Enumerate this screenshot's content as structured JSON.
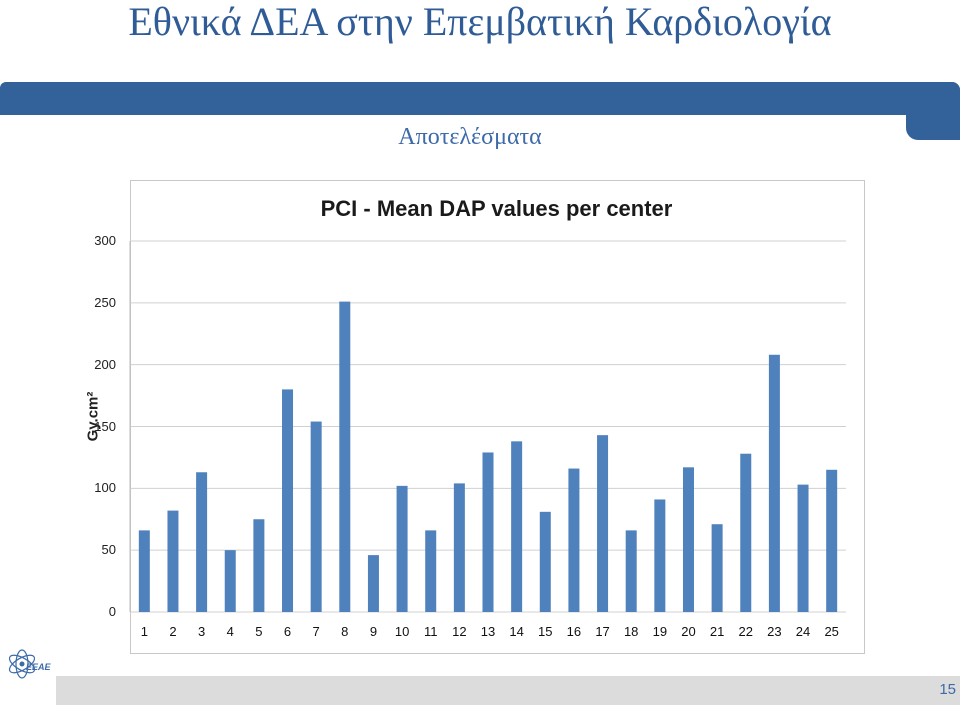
{
  "slide": {
    "title": "Εθνικά ΔΕΑ στην Επεμβατική Καρδιολογία",
    "subtitle": "Αποτελέσματα",
    "page_number": "15",
    "logo_text": "ΕΕΑΕ"
  },
  "colors": {
    "bar": "#4f81bd",
    "band": "#33619a",
    "title": "#2f5c96"
  },
  "chart_data": {
    "type": "bar",
    "title": "PCI - Mean DAP values per center",
    "xlabel": "",
    "ylabel": "Gy.cm²",
    "ylim": [
      0,
      300
    ],
    "yticks": [
      "0",
      "50",
      "100",
      "150",
      "200",
      "250",
      "300"
    ],
    "grid": true,
    "categories": [
      "1",
      "2",
      "3",
      "4",
      "5",
      "6",
      "7",
      "8",
      "9",
      "10",
      "11",
      "12",
      "13",
      "14",
      "15",
      "16",
      "17",
      "18",
      "19",
      "20",
      "21",
      "22",
      "23",
      "24",
      "25"
    ],
    "values": [
      66,
      82,
      113,
      50,
      75,
      180,
      154,
      251,
      46,
      102,
      66,
      104,
      129,
      138,
      81,
      116,
      143,
      66,
      91,
      117,
      71,
      128,
      208,
      103,
      115
    ]
  }
}
